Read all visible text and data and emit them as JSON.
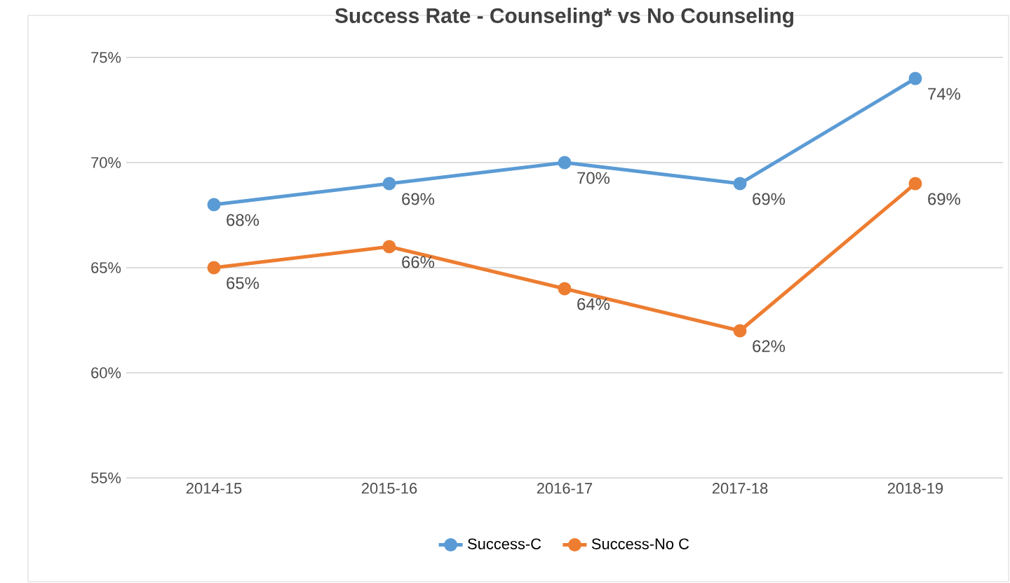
{
  "chart_data": {
    "type": "line",
    "title": "Success Rate - Counseling* vs No Counseling",
    "categories": [
      "2014-15",
      "2015-16",
      "2016-17",
      "2017-18",
      "2018-19"
    ],
    "series": [
      {
        "name": "Success-C",
        "color": "#5b9bd5",
        "values": [
          68,
          69,
          70,
          69,
          74
        ],
        "value_labels": [
          "68%",
          "69%",
          "70%",
          "69%",
          "74%"
        ]
      },
      {
        "name": "Success-No C",
        "color": "#ed7d31",
        "values": [
          65,
          66,
          64,
          62,
          69
        ],
        "value_labels": [
          "65%",
          "66%",
          "64%",
          "62%",
          "69%"
        ]
      }
    ],
    "ylim": [
      55,
      75
    ],
    "yticks": [
      {
        "value": 55,
        "label": "55%"
      },
      {
        "value": 60,
        "label": "60%"
      },
      {
        "value": 65,
        "label": "65%"
      },
      {
        "value": 70,
        "label": "70%"
      },
      {
        "value": 75,
        "label": "75%"
      }
    ],
    "grid": "y",
    "legend": "bottom",
    "marker": "circle",
    "line_style": "solid"
  }
}
